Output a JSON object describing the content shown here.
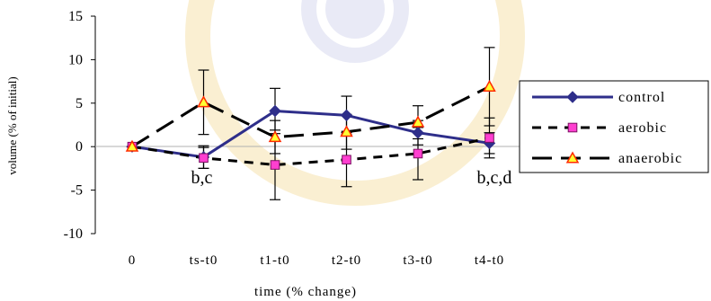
{
  "chart_data": {
    "type": "line",
    "xlabel": "time (% change)",
    "ylabel": "volume (% of initial)",
    "categories": [
      "0",
      "ts-t0",
      "t1-t0",
      "t2-t0",
      "t3-t0",
      "t4-t0"
    ],
    "ylim": [
      -10,
      15
    ],
    "yticks": [
      -10,
      -5,
      0,
      5,
      10,
      15
    ],
    "grid": false,
    "legend_position": "right",
    "series": [
      {
        "name": "control",
        "values": [
          0,
          -1.2,
          4.1,
          3.6,
          1.6,
          0.4
        ],
        "error": [
          0,
          1.3,
          2.6,
          2.2,
          1.4,
          1.2
        ],
        "color": "#2e2e8a",
        "dash": "solid",
        "marker": "diamond",
        "marker_fill": "#2e2e8a"
      },
      {
        "name": "aerobic",
        "values": [
          0,
          -1.3,
          -2.1,
          -1.5,
          -0.8,
          1.0
        ],
        "error": [
          0,
          1.2,
          4.0,
          3.1,
          3.0,
          2.3
        ],
        "color": "#000000",
        "dash": "short",
        "marker": "square",
        "marker_fill": "#ff3fd0"
      },
      {
        "name": "anaerobic",
        "values": [
          0,
          5.1,
          1.1,
          1.7,
          2.8,
          6.9
        ],
        "error": [
          0,
          3.7,
          1.9,
          2.0,
          1.9,
          4.5
        ],
        "color": "#000000",
        "dash": "long",
        "marker": "triangle",
        "marker_fill": "#ffff33"
      }
    ],
    "annotations": [
      {
        "text": "b,c",
        "category": "ts-t0"
      },
      {
        "text": "b,c,d",
        "category": "t4-t0"
      }
    ]
  }
}
